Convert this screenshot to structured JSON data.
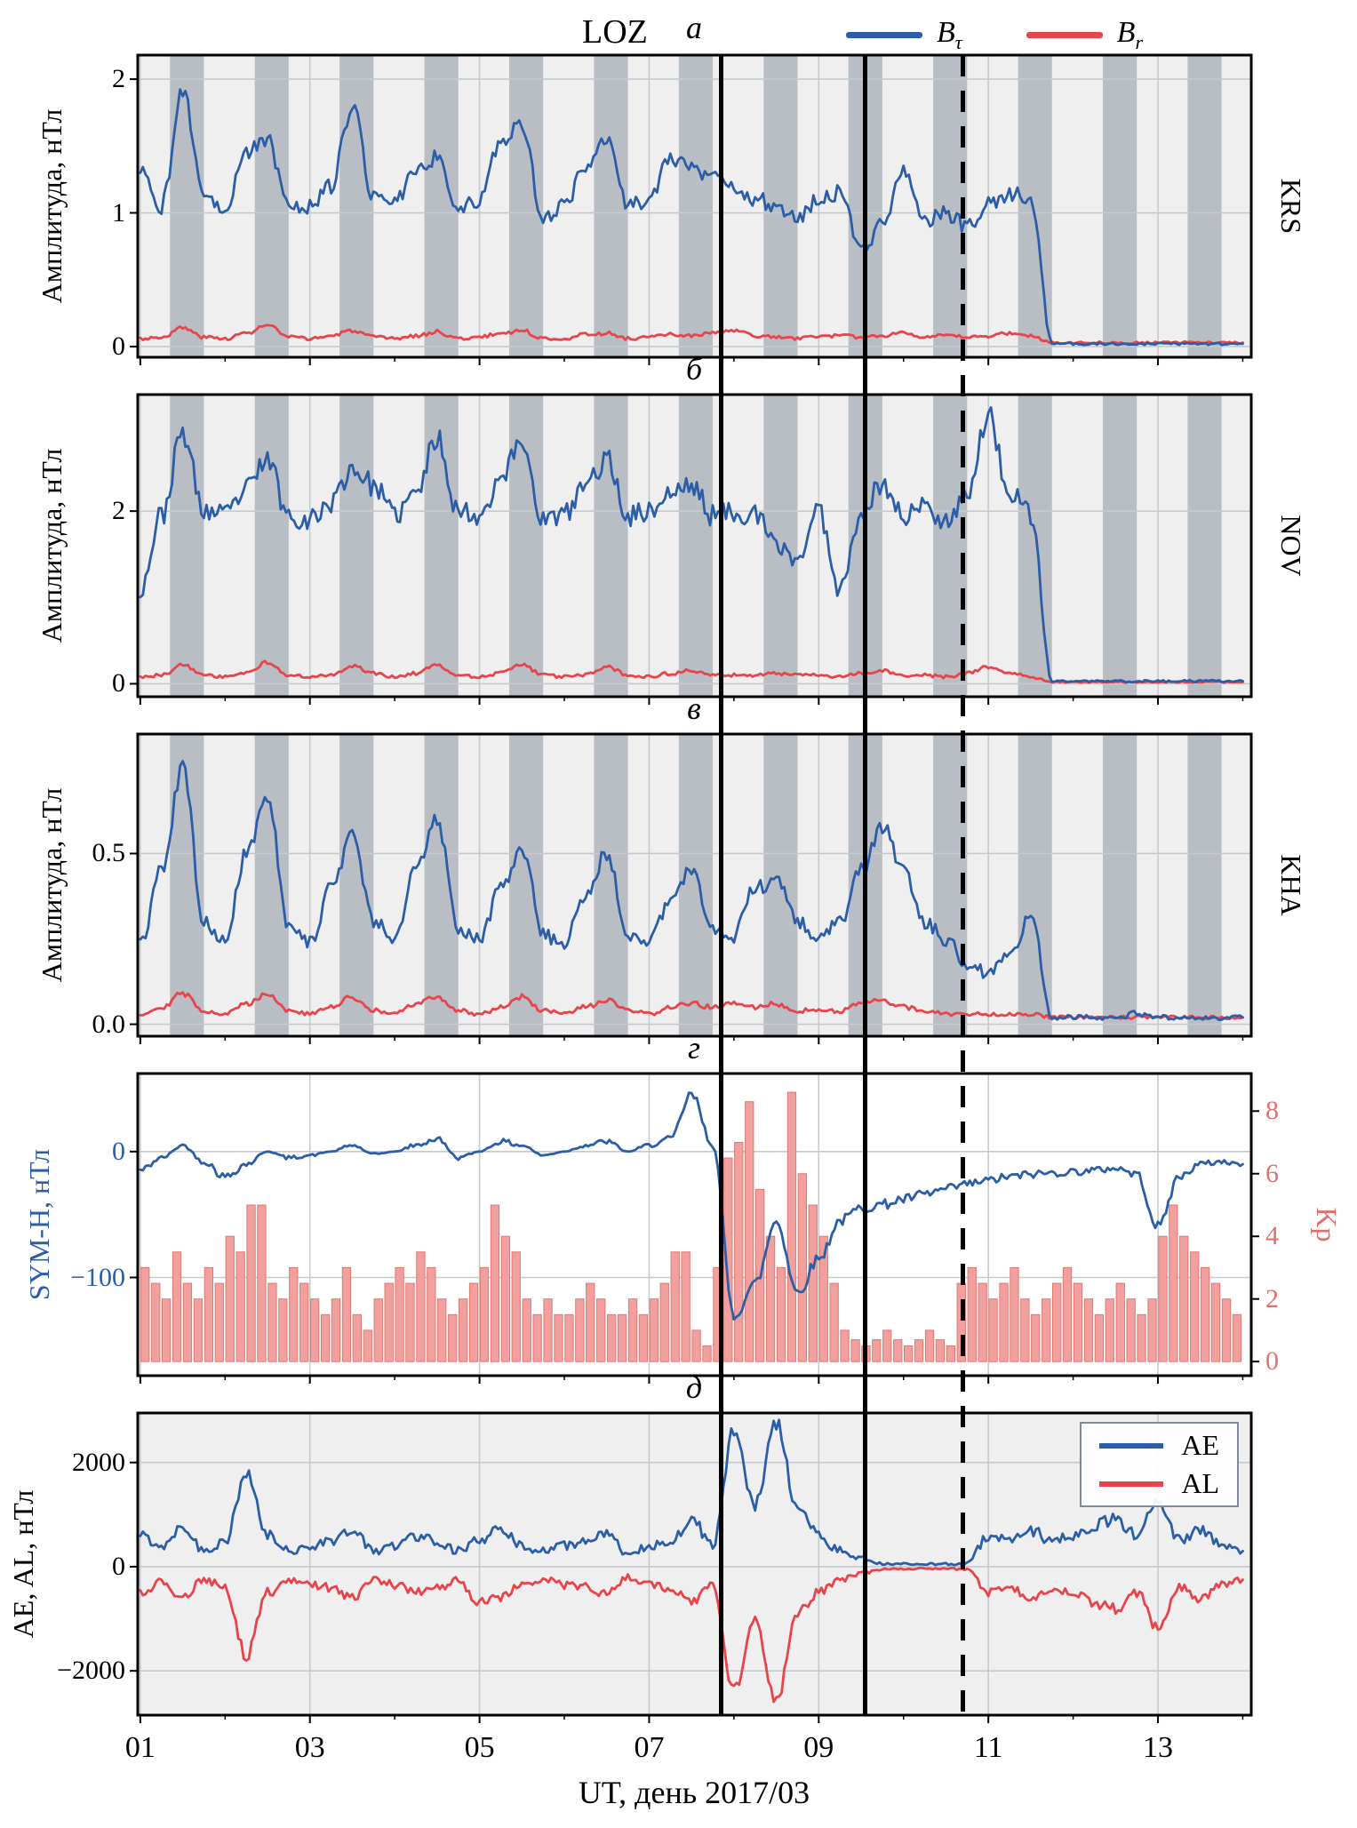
{
  "figure": {
    "title": "LOZ",
    "legend": [
      {
        "label_main": "B",
        "label_sub": "τ",
        "color": "#2b5ea7"
      },
      {
        "label_main": "B",
        "label_sub": "r",
        "color": "#e8444c"
      }
    ],
    "xaxis": {
      "label": "UT, день 2017/03",
      "tick_labels": [
        "01",
        "03",
        "05",
        "07",
        "09",
        "11",
        "13"
      ],
      "tick_days": [
        1,
        3,
        5,
        7,
        9,
        11,
        13
      ],
      "minor_days": [
        2,
        4,
        6,
        8,
        10,
        12,
        14
      ],
      "range": [
        0.97,
        14.1
      ]
    },
    "event_lines": {
      "solid_days": [
        7.85,
        9.55
      ],
      "dashed_days": [
        10.7
      ],
      "color": "#000000"
    },
    "night_bands": {
      "start_offset": 0.35,
      "end_offset": 0.75,
      "first_day": 1,
      "last_day": 13,
      "color": "#b9bec4"
    },
    "colors": {
      "blue": "#2b5ea7",
      "red": "#e8444c",
      "kp_bar_fill": "#f2a09d",
      "kp_bar_edge": "#e07873",
      "kp_axis": "#e2706c",
      "grid": "#c6cacf",
      "panel_bg": "#efefef",
      "frame": "#000000"
    }
  },
  "chart_data": [
    {
      "type": "line",
      "panel_label": "а",
      "station": "KRS",
      "ylabel": "Амплитуда, нТл",
      "right_label": "KRS",
      "ylim": [
        -0.08,
        2.18
      ],
      "yticks": [
        {
          "v": 2,
          "t": "2"
        },
        {
          "v": 1,
          "t": "1"
        },
        {
          "v": 0,
          "t": "0"
        }
      ],
      "night_bands": true,
      "bg": "#efefef",
      "series": [
        {
          "name": "Br",
          "color": "#e8444c",
          "x0": 1,
          "dx": 0.25,
          "noise": 0.02,
          "y": [
            0.06,
            0.07,
            0.14,
            0.07,
            0.06,
            0.1,
            0.16,
            0.07,
            0.06,
            0.08,
            0.12,
            0.07,
            0.06,
            0.08,
            0.11,
            0.06,
            0.07,
            0.1,
            0.12,
            0.06,
            0.06,
            0.09,
            0.1,
            0.06,
            0.07,
            0.09,
            0.08,
            0.1,
            0.12,
            0.08,
            0.07,
            0.06,
            0.08,
            0.08,
            0.07,
            0.08,
            0.11,
            0.07,
            0.08,
            0.07,
            0.08,
            0.1,
            0.08,
            0.03,
            0.03,
            0.03,
            0.03,
            0.03,
            0.03,
            0.03,
            0.03,
            0.03,
            0.03
          ]
        },
        {
          "name": "Btau",
          "color": "#2b5ea7",
          "x0": 1,
          "dx": 0.25,
          "noise": 0.07,
          "y": [
            1.3,
            1.05,
            1.9,
            1.15,
            1.05,
            1.45,
            1.55,
            1.05,
            1.05,
            1.2,
            1.8,
            1.1,
            1.1,
            1.3,
            1.42,
            1.02,
            1.1,
            1.55,
            1.65,
            0.95,
            1.05,
            1.35,
            1.58,
            1.05,
            1.1,
            1.4,
            1.35,
            1.25,
            1.2,
            1.1,
            1.05,
            0.95,
            1.1,
            1.15,
            0.72,
            0.9,
            1.3,
            0.95,
            1.0,
            0.9,
            1.08,
            1.15,
            1.12,
            0.02,
            0.02,
            0.02,
            0.02,
            0.02,
            0.02,
            0.02,
            0.02,
            0.02,
            0.02
          ]
        }
      ]
    },
    {
      "type": "line",
      "panel_label": "б",
      "station": "NOV",
      "ylabel": "Амплитуда, нТл",
      "right_label": "NOV",
      "ylim": [
        -0.15,
        3.35
      ],
      "yticks": [
        {
          "v": 2,
          "t": "2"
        },
        {
          "v": 0,
          "t": "0"
        }
      ],
      "night_bands": true,
      "bg": "#efefef",
      "series": [
        {
          "name": "Br",
          "color": "#e8444c",
          "x0": 1,
          "dx": 0.25,
          "noise": 0.03,
          "y": [
            0.08,
            0.1,
            0.22,
            0.1,
            0.08,
            0.12,
            0.25,
            0.1,
            0.08,
            0.1,
            0.2,
            0.12,
            0.08,
            0.12,
            0.22,
            0.1,
            0.08,
            0.12,
            0.22,
            0.1,
            0.08,
            0.1,
            0.2,
            0.1,
            0.08,
            0.12,
            0.15,
            0.1,
            0.1,
            0.1,
            0.12,
            0.1,
            0.1,
            0.08,
            0.12,
            0.15,
            0.1,
            0.1,
            0.08,
            0.12,
            0.2,
            0.12,
            0.08,
            0.02,
            0.02,
            0.02,
            0.02,
            0.02,
            0.02,
            0.02,
            0.02,
            0.02,
            0.02
          ]
        },
        {
          "name": "Btau",
          "color": "#2b5ea7",
          "x0": 1,
          "dx": 0.25,
          "noise": 0.15,
          "y": [
            1.1,
            1.95,
            2.9,
            2.0,
            1.95,
            2.25,
            2.6,
            1.95,
            1.9,
            2.1,
            2.5,
            2.3,
            1.95,
            2.2,
            2.85,
            2.0,
            1.95,
            2.4,
            2.8,
            1.9,
            1.95,
            2.3,
            2.6,
            1.95,
            2.0,
            2.2,
            2.3,
            1.95,
            2.0,
            1.95,
            1.6,
            1.45,
            2.0,
            1.1,
            2.0,
            2.3,
            1.95,
            2.05,
            1.9,
            2.2,
            3.1,
            2.2,
            1.95,
            0.03,
            0.03,
            0.03,
            0.03,
            0.03,
            0.03,
            0.03,
            0.03,
            0.03,
            0.03
          ]
        }
      ]
    },
    {
      "type": "line",
      "panel_label": "в",
      "station": "KHA",
      "ylabel": "Амплитуда, нТл",
      "right_label": "KHA",
      "ylim": [
        -0.035,
        0.85
      ],
      "yticks": [
        {
          "v": 0.5,
          "t": "0.5"
        },
        {
          "v": 0,
          "t": "0.0"
        }
      ],
      "night_bands": true,
      "bg": "#efefef",
      "series": [
        {
          "name": "Br",
          "color": "#e8444c",
          "x0": 1,
          "dx": 0.25,
          "noise": 0.01,
          "y": [
            0.03,
            0.05,
            0.09,
            0.04,
            0.03,
            0.06,
            0.09,
            0.04,
            0.03,
            0.05,
            0.08,
            0.04,
            0.03,
            0.06,
            0.08,
            0.04,
            0.03,
            0.05,
            0.08,
            0.04,
            0.03,
            0.05,
            0.07,
            0.04,
            0.03,
            0.05,
            0.06,
            0.05,
            0.06,
            0.05,
            0.06,
            0.04,
            0.04,
            0.04,
            0.06,
            0.07,
            0.05,
            0.04,
            0.03,
            0.03,
            0.03,
            0.03,
            0.03,
            0.02,
            0.02,
            0.02,
            0.02,
            0.02,
            0.02,
            0.02,
            0.02,
            0.02,
            0.02
          ]
        },
        {
          "name": "Btau",
          "color": "#2b5ea7",
          "x0": 1,
          "dx": 0.25,
          "noise": 0.025,
          "y": [
            0.23,
            0.45,
            0.75,
            0.3,
            0.25,
            0.5,
            0.66,
            0.28,
            0.24,
            0.4,
            0.56,
            0.3,
            0.25,
            0.45,
            0.6,
            0.28,
            0.25,
            0.4,
            0.52,
            0.26,
            0.24,
            0.38,
            0.5,
            0.26,
            0.25,
            0.35,
            0.45,
            0.28,
            0.26,
            0.4,
            0.42,
            0.3,
            0.25,
            0.3,
            0.45,
            0.58,
            0.45,
            0.3,
            0.25,
            0.18,
            0.15,
            0.2,
            0.32,
            0.02,
            0.02,
            0.02,
            0.02,
            0.03,
            0.02,
            0.02,
            0.02,
            0.02,
            0.02
          ]
        }
      ]
    },
    {
      "type": "line+bar",
      "panel_label": "г",
      "ylabel": "SYM-H, нТл",
      "ylabel_color": "#2b5ea7",
      "ytick_color": "#2b5ea7",
      "ylim": [
        -178,
        62
      ],
      "yticks": [
        {
          "v": 0,
          "t": "0"
        },
        {
          "v": -100,
          "t": "−100"
        }
      ],
      "night_bands": false,
      "bg": "#ffffff",
      "right_axis": {
        "label": "Kp",
        "color": "#e2706c",
        "ylim": [
          -0.45,
          9.2
        ],
        "ticks": [
          {
            "v": 8,
            "t": "8"
          },
          {
            "v": 6,
            "t": "6"
          },
          {
            "v": 4,
            "t": "4"
          },
          {
            "v": 2,
            "t": "2"
          },
          {
            "v": 0,
            "t": "0"
          }
        ]
      },
      "bars": {
        "name": "Kp",
        "x0": 1,
        "dx": 0.125,
        "width": 0.105,
        "values": [
          3,
          2.5,
          2,
          3.5,
          2.5,
          2,
          3,
          2.5,
          4,
          3.5,
          5,
          5,
          2.5,
          2,
          3,
          2.5,
          2,
          1.5,
          2,
          3,
          1.5,
          1,
          2,
          2.5,
          3,
          2.5,
          3.5,
          3,
          2,
          1.5,
          2,
          2.5,
          3,
          5,
          4,
          3.5,
          2,
          1.5,
          2,
          1.5,
          1.5,
          2,
          2.5,
          2,
          1.5,
          1.5,
          2,
          1.5,
          2,
          2.5,
          3.5,
          3.5,
          1,
          0.5,
          3,
          6.5,
          7,
          8.3,
          5.5,
          4,
          3,
          8.6,
          6,
          5,
          4,
          2.5,
          1,
          0.7,
          0.5,
          0.7,
          1,
          0.7,
          0.5,
          0.7,
          1,
          0.7,
          0.5,
          2.5,
          3,
          2.5,
          2,
          2.5,
          3,
          2,
          1.5,
          2,
          2.5,
          3,
          2.5,
          2,
          1.5,
          2,
          2.5,
          2,
          1.5,
          2,
          4,
          5,
          4,
          3.5,
          3,
          2.5,
          2,
          1.5
        ]
      },
      "series": [
        {
          "name": "SYM-H",
          "color": "#2b5ea7",
          "x0": 1,
          "dx": 0.25,
          "noise": 5,
          "y": [
            -15,
            -5,
            5,
            -8,
            -20,
            -10,
            0,
            -5,
            -3,
            0,
            5,
            -2,
            0,
            5,
            10,
            -5,
            0,
            8,
            5,
            -3,
            0,
            5,
            8,
            0,
            5,
            10,
            45,
            5,
            -130,
            -105,
            -55,
            -112,
            -85,
            -55,
            -45,
            -42,
            -38,
            -34,
            -30,
            -26,
            -23,
            -20,
            -18,
            -17,
            -16,
            -15,
            -13,
            -18,
            -60,
            -20,
            -10,
            -8,
            -10
          ]
        }
      ]
    },
    {
      "type": "line",
      "panel_label": "д",
      "ylabel": "AE, AL, нТл",
      "ylim": [
        -2850,
        2950
      ],
      "yticks": [
        {
          "v": 2000,
          "t": "2000"
        },
        {
          "v": 0,
          "t": "0"
        },
        {
          "v": -2000,
          "t": "−2000"
        }
      ],
      "night_bands": false,
      "bg": "#efefef",
      "legend": [
        {
          "label": "AE",
          "color": "#2b5ea7"
        },
        {
          "label": "AL",
          "color": "#e8444c"
        }
      ],
      "series": [
        {
          "name": "AE",
          "color": "#2b5ea7",
          "x0": 1,
          "dx": 0.25,
          "noise": 170,
          "clamp_min": 5,
          "y": [
            600,
            400,
            800,
            300,
            500,
            1750,
            600,
            300,
            400,
            500,
            700,
            300,
            400,
            600,
            500,
            300,
            500,
            700,
            400,
            300,
            400,
            500,
            600,
            250,
            400,
            500,
            900,
            400,
            2600,
            1200,
            2750,
            1100,
            600,
            300,
            150,
            60,
            50,
            50,
            50,
            60,
            600,
            500,
            700,
            500,
            600,
            800,
            900,
            600,
            1300,
            500,
            700,
            400,
            300
          ]
        },
        {
          "name": "AL",
          "color": "#e8444c",
          "x0": 1,
          "dx": 0.25,
          "noise": 150,
          "clamp_max": -5,
          "y": [
            -500,
            -300,
            -600,
            -250,
            -400,
            -1700,
            -500,
            -250,
            -350,
            -400,
            -600,
            -250,
            -350,
            -500,
            -400,
            -250,
            -700,
            -600,
            -350,
            -250,
            -350,
            -400,
            -500,
            -200,
            -350,
            -400,
            -700,
            -300,
            -2400,
            -1000,
            -2600,
            -900,
            -500,
            -250,
            -120,
            -50,
            -40,
            -40,
            -40,
            -50,
            -500,
            -400,
            -600,
            -400,
            -500,
            -700,
            -800,
            -500,
            -1200,
            -400,
            -600,
            -350,
            -250
          ]
        }
      ]
    }
  ]
}
